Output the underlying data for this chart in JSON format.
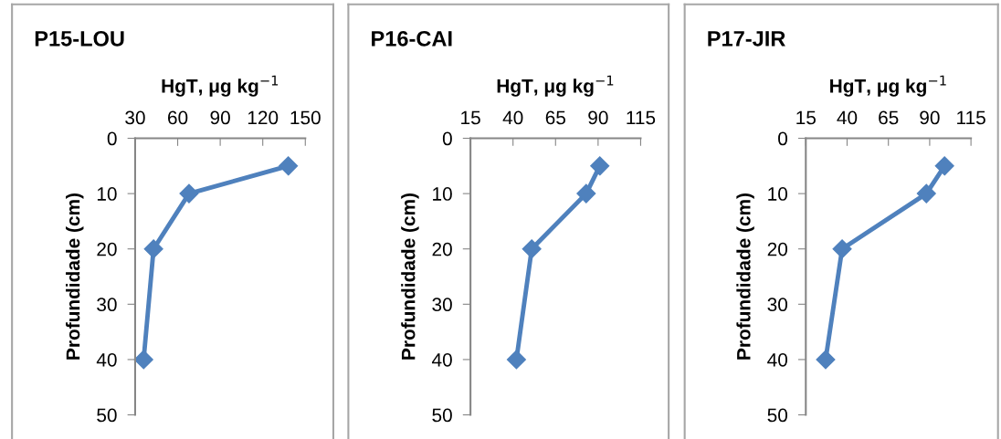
{
  "chart_data": [
    {
      "type": "line",
      "title": "P15-LOU",
      "xlabel": "HgT, μg kg$^{−1}$",
      "ylabel": "Profundidade (cm)",
      "xlim": [
        30,
        150
      ],
      "xticks": [
        30,
        60,
        90,
        120,
        150
      ],
      "ylim": [
        50,
        0
      ],
      "yticks": [
        0,
        10,
        20,
        30,
        40,
        50
      ],
      "marker": "diamond",
      "grid": false,
      "legend": false,
      "series": [
        {
          "color": "#4f81bd",
          "x": [
            138,
            68,
            43,
            36
          ],
          "values": [
            5,
            10,
            20,
            40
          ]
        }
      ]
    },
    {
      "type": "line",
      "title": "P16-CAI",
      "xlabel": "HgT, μg kg$^{−1}$",
      "ylabel": "Profundidade (cm)",
      "xlim": [
        15,
        115
      ],
      "xticks": [
        15,
        40,
        65,
        90,
        115
      ],
      "ylim": [
        50,
        0
      ],
      "yticks": [
        0,
        10,
        20,
        30,
        40,
        50
      ],
      "marker": "diamond",
      "grid": false,
      "legend": false,
      "series": [
        {
          "color": "#4f81bd",
          "x": [
            91,
            83,
            51,
            42
          ],
          "values": [
            5,
            10,
            20,
            40
          ]
        }
      ]
    },
    {
      "type": "line",
      "title": "P17-JIR",
      "xlabel": "HgT, μg kg$^{−1}$",
      "ylabel": "Profundidade (cm)",
      "xlim": [
        15,
        115
      ],
      "xticks": [
        15,
        40,
        65,
        90,
        115
      ],
      "ylim": [
        50,
        0
      ],
      "yticks": [
        0,
        10,
        20,
        30,
        40,
        50
      ],
      "marker": "diamond",
      "grid": false,
      "legend": false,
      "series": [
        {
          "color": "#4f81bd",
          "x": [
            99,
            88,
            37,
            27
          ],
          "values": [
            5,
            10,
            20,
            40
          ]
        }
      ]
    }
  ]
}
